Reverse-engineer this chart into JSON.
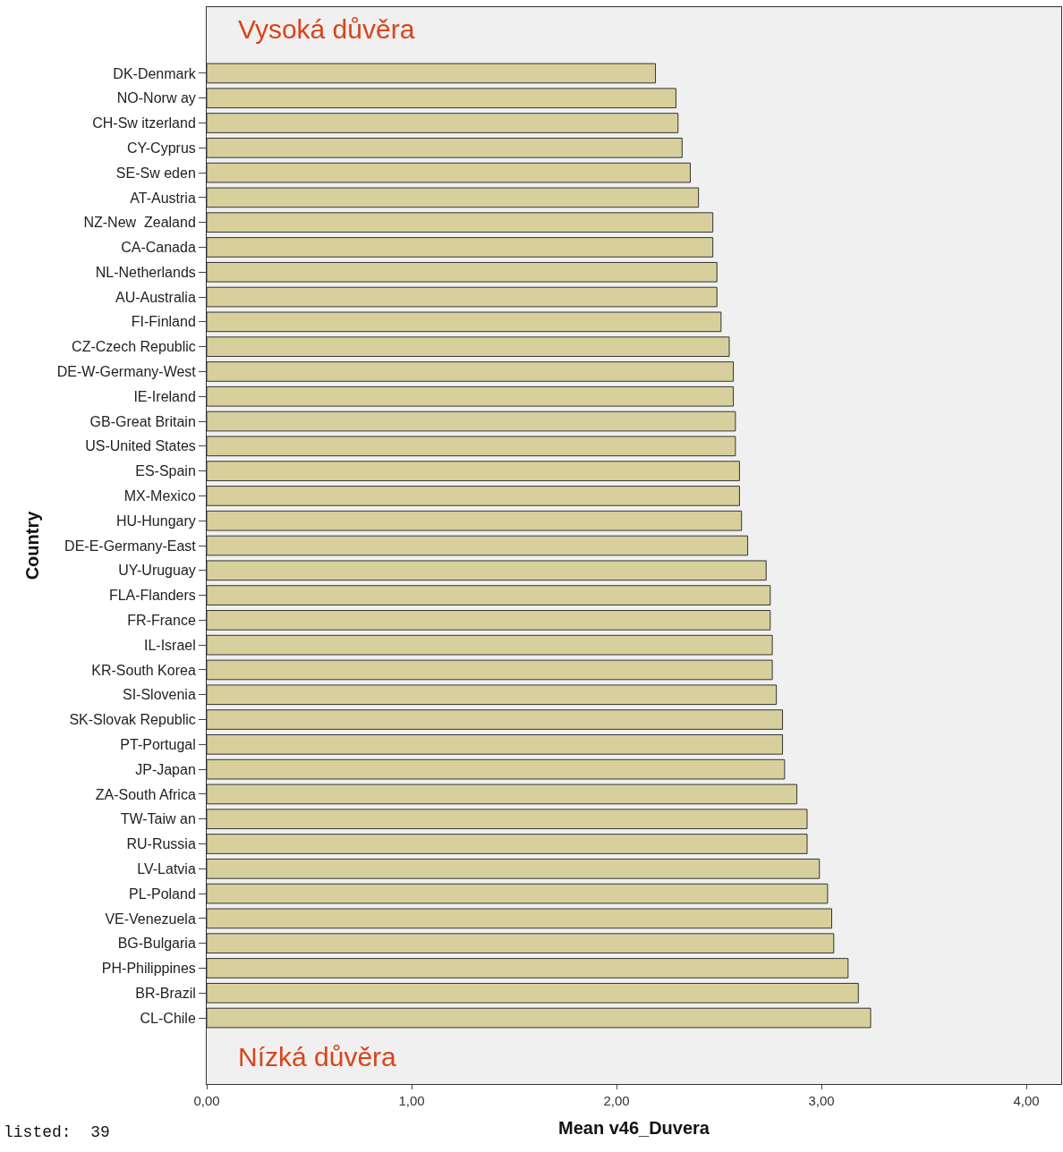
{
  "chart_data": {
    "type": "bar",
    "orientation": "horizontal",
    "xlabel": "Mean v46_Duvera",
    "ylabel": "Country",
    "categories": [
      "DK-Denmark",
      "NO-Norw ay",
      "CH-Sw itzerland",
      "CY-Cyprus",
      "SE-Sw eden",
      "AT-Austria",
      "NZ-New  Zealand",
      "CA-Canada",
      "NL-Netherlands",
      "AU-Australia",
      "FI-Finland",
      "CZ-Czech Republic",
      "DE-W-Germany-West",
      "IE-Ireland",
      "GB-Great Britain",
      "US-United States",
      "ES-Spain",
      "MX-Mexico",
      "HU-Hungary",
      "DE-E-Germany-East",
      "UY-Uruguay",
      "FLA-Flanders",
      "FR-France",
      "IL-Israel",
      "KR-South Korea",
      "SI-Slovenia",
      "SK-Slovak Republic",
      "PT-Portugal",
      "JP-Japan",
      "ZA-South Africa",
      "TW-Taiw an",
      "RU-Russia",
      "LV-Latvia",
      "PL-Poland",
      "VE-Venezuela",
      "BG-Bulgaria",
      "PH-Philippines",
      "BR-Brazil",
      "CL-Chile"
    ],
    "values": [
      2.19,
      2.29,
      2.3,
      2.32,
      2.36,
      2.4,
      2.47,
      2.47,
      2.49,
      2.49,
      2.51,
      2.55,
      2.57,
      2.57,
      2.58,
      2.58,
      2.6,
      2.6,
      2.61,
      2.64,
      2.73,
      2.75,
      2.75,
      2.76,
      2.76,
      2.78,
      2.81,
      2.81,
      2.82,
      2.88,
      2.93,
      2.93,
      2.99,
      3.03,
      3.05,
      3.06,
      3.13,
      3.18,
      3.24
    ],
    "color": "#d8d09c",
    "xlim": [
      0,
      4.17
    ],
    "xticks": [
      {
        "value": 0,
        "label": "0,00"
      },
      {
        "value": 1,
        "label": "1,00"
      },
      {
        "value": 2,
        "label": "2,00"
      },
      {
        "value": 3,
        "label": "3,00"
      },
      {
        "value": 4,
        "label": "4,00"
      }
    ],
    "grid": false,
    "annotations": [
      "Vysoká důvěra",
      "Nízká důvěra",
      "listed:  39"
    ]
  }
}
